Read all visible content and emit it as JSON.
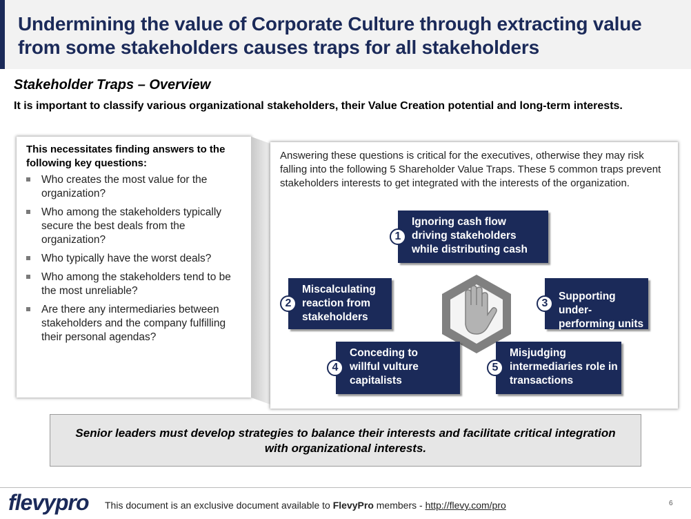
{
  "title": "Undermining the value of Corporate Culture through extracting value from some stakeholders causes traps for all stakeholders",
  "subtitle": "Stakeholder Traps – Overview",
  "intro": "It is important to classify various organizational stakeholders, their Value Creation potential and long-term interests.",
  "left_panel": {
    "heading": "This necessitates finding answers to the following key questions:",
    "questions": [
      "Who creates the most value for the organization?",
      "Who among the stakeholders typically secure the best deals from the organization?",
      "Who typically have the worst deals?",
      "Who among the stakeholders tend to be the most unreliable?",
      "Are there any intermediaries between stakeholders and the company fulfilling their personal agendas?"
    ]
  },
  "right_panel": {
    "text": "Answering these questions is critical for the executives, otherwise they may risk falling into the following 5 Shareholder Value Traps.  These 5 common traps prevent stakeholders interests to get integrated with the interests of the organization.",
    "traps": [
      {
        "number": "1",
        "label": "Ignoring cash flow driving stakeholders while distributing cash"
      },
      {
        "number": "2",
        "label": "Miscalculating reaction from stakeholders"
      },
      {
        "number": "3",
        "label": "Supporting under-performing units"
      },
      {
        "number": "4",
        "label": "Conceding to willful vulture capitalists"
      },
      {
        "number": "5",
        "label": "Misjudging intermediaries role in transactions"
      }
    ],
    "center_icon": "stop-hand-icon"
  },
  "callout": "Senior leaders must develop strategies to balance their interests and facilitate critical integration with organizational interests.",
  "footer": {
    "logo_flevy": "flevy",
    "logo_pro": "pro",
    "text_prefix": "This document is an exclusive document available to ",
    "text_brand": "FlevyPro",
    "text_middle": " members - ",
    "link": "http://flevy.com/pro",
    "page_number": "6"
  },
  "colors": {
    "navy": "#1b2a59",
    "title_bg": "#f2f2f2",
    "callout_bg": "#e6e6e6",
    "hexagon": "#808080"
  }
}
